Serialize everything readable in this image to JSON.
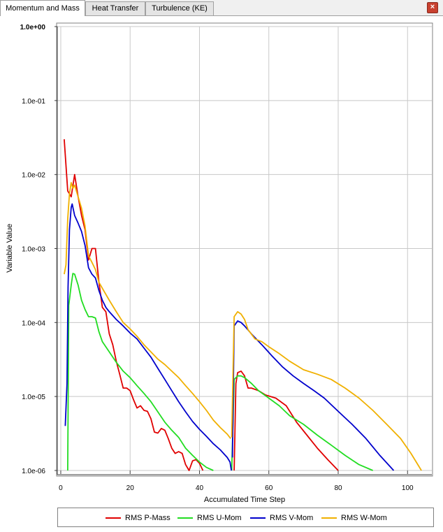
{
  "tabs": [
    {
      "label": "Momentum and Mass"
    },
    {
      "label": "Heat Transfer"
    },
    {
      "label": "Turbulence (KE)"
    }
  ],
  "close_icon": "close-icon",
  "chart_data": {
    "type": "line",
    "title": "",
    "xlabel": "Accumulated Time Step",
    "ylabel": "Variable Value",
    "xlim": [
      -1,
      107
    ],
    "ylim_log10": [
      -6,
      0
    ],
    "yscale": "log",
    "x_ticks": [
      0,
      20,
      40,
      60,
      80,
      100
    ],
    "y_tick_labels": [
      "1.0e+00",
      "1.0e-01",
      "1.0e-02",
      "1.0e-03",
      "1.0e-04",
      "1.0e-05",
      "1.0e-06"
    ],
    "grid": true,
    "legend_position": "bottom",
    "series": [
      {
        "name": "RMS P-Mass",
        "color": "#e00000",
        "segments": [
          [
            [
              1,
              0.03
            ],
            [
              2,
              0.006
            ],
            [
              3,
              0.005
            ],
            [
              4,
              0.01
            ],
            [
              5,
              0.005
            ],
            [
              6,
              0.0028
            ],
            [
              7,
              0.0018
            ],
            [
              8,
              0.0007
            ],
            [
              9,
              0.001
            ],
            [
              10,
              0.001
            ],
            [
              11,
              0.00035
            ],
            [
              12,
              0.00016
            ],
            [
              13,
              0.00014
            ],
            [
              14,
              7e-05
            ],
            [
              15,
              5e-05
            ],
            [
              16,
              3e-05
            ],
            [
              17,
              2e-05
            ],
            [
              18,
              1.3e-05
            ],
            [
              19,
              1.3e-05
            ],
            [
              20,
              1.2e-05
            ],
            [
              21,
              9e-06
            ],
            [
              22,
              7e-06
            ],
            [
              23,
              7.5e-06
            ],
            [
              24,
              6.5e-06
            ],
            [
              25,
              6.3e-06
            ],
            [
              26,
              5e-06
            ],
            [
              27,
              3.3e-06
            ],
            [
              28,
              3.2e-06
            ],
            [
              29,
              3.7e-06
            ],
            [
              30,
              3.5e-06
            ],
            [
              31,
              2.7e-06
            ],
            [
              32,
              2e-06
            ],
            [
              33,
              1.7e-06
            ],
            [
              34,
              1.8e-06
            ],
            [
              35,
              1.7e-06
            ],
            [
              36,
              1.2e-06
            ],
            [
              37,
              1e-06
            ],
            [
              38,
              1.35e-06
            ],
            [
              39,
              1.4e-06
            ],
            [
              40,
              1.25e-06
            ],
            [
              41,
              1e-06
            ]
          ],
          [
            [
              50,
              1e-06
            ],
            [
              50.5,
              1.5e-05
            ],
            [
              51,
              2.1e-05
            ],
            [
              52,
              2.2e-05
            ],
            [
              53,
              1.9e-05
            ],
            [
              54,
              1.3e-05
            ],
            [
              55,
              1.3e-05
            ],
            [
              57,
              1.2e-05
            ],
            [
              59,
              1.05e-05
            ],
            [
              62,
              9.5e-06
            ],
            [
              65,
              7.5e-06
            ],
            [
              68,
              4.5e-06
            ],
            [
              71,
              3e-06
            ],
            [
              74,
              2e-06
            ],
            [
              77,
              1.4e-06
            ],
            [
              80,
              1e-06
            ]
          ]
        ]
      },
      {
        "name": "RMS U-Mom",
        "color": "#22dd22",
        "segments": [
          [
            [
              2,
              1e-06
            ],
            [
              2.3,
              0.00017
            ],
            [
              3,
              0.00032
            ],
            [
              3.5,
              0.00046
            ],
            [
              4,
              0.00045
            ],
            [
              5,
              0.00032
            ],
            [
              6,
              0.0002
            ],
            [
              7,
              0.00015
            ],
            [
              8,
              0.00012
            ],
            [
              9,
              0.00012
            ],
            [
              10,
              0.000115
            ],
            [
              11,
              7.5e-05
            ],
            [
              12,
              5.5e-05
            ],
            [
              14,
              4e-05
            ],
            [
              16,
              2.9e-05
            ],
            [
              18,
              2.2e-05
            ],
            [
              20,
              1.8e-05
            ],
            [
              22,
              1.4e-05
            ],
            [
              24,
              1.1e-05
            ],
            [
              26,
              8.5e-06
            ],
            [
              28,
              6.2e-06
            ],
            [
              30,
              4.5e-06
            ],
            [
              32,
              3.5e-06
            ],
            [
              34,
              2.8e-06
            ],
            [
              36,
              2e-06
            ],
            [
              38,
              1.6e-06
            ],
            [
              40,
              1.3e-06
            ],
            [
              42,
              1.1e-06
            ],
            [
              44,
              1e-06
            ]
          ],
          [
            [
              49.3,
              1e-06
            ],
            [
              50,
              1.7e-05
            ],
            [
              51,
              1.9e-05
            ],
            [
              52,
              1.9e-05
            ],
            [
              53,
              1.8e-05
            ],
            [
              55,
              1.5e-05
            ],
            [
              57,
              1.2e-05
            ],
            [
              60,
              9.5e-06
            ],
            [
              63,
              7.5e-06
            ],
            [
              66,
              5.5e-06
            ],
            [
              70,
              4.2e-06
            ],
            [
              74,
              3e-06
            ],
            [
              78,
              2.2e-06
            ],
            [
              82,
              1.6e-06
            ],
            [
              86,
              1.2e-06
            ],
            [
              90,
              1e-06
            ]
          ]
        ]
      },
      {
        "name": "RMS V-Mom",
        "color": "#0000cc",
        "segments": [
          [
            [
              1.3,
              4e-06
            ],
            [
              1.8,
              1.5e-05
            ],
            [
              2.1,
              0.0003
            ],
            [
              2.5,
              0.0018
            ],
            [
              3,
              0.0036
            ],
            [
              3.3,
              0.004
            ],
            [
              4,
              0.0028
            ],
            [
              5,
              0.0022
            ],
            [
              6,
              0.0017
            ],
            [
              7,
              0.0011
            ],
            [
              8,
              0.00055
            ],
            [
              9,
              0.00045
            ],
            [
              10,
              0.0004
            ],
            [
              11,
              0.00027
            ],
            [
              12,
              0.0002
            ],
            [
              13,
              0.00016
            ],
            [
              14,
              0.00014
            ],
            [
              16,
              0.00011
            ],
            [
              18,
              9e-05
            ],
            [
              20,
              7.2e-05
            ],
            [
              22,
              6e-05
            ],
            [
              24,
              4.5e-05
            ],
            [
              26,
              3.4e-05
            ],
            [
              28,
              2.4e-05
            ],
            [
              30,
              1.7e-05
            ],
            [
              32,
              1.2e-05
            ],
            [
              34,
              8.5e-06
            ],
            [
              36,
              6.2e-06
            ],
            [
              38,
              4.6e-06
            ],
            [
              40,
              3.6e-06
            ],
            [
              42,
              2.9e-06
            ],
            [
              44,
              2.3e-06
            ],
            [
              46,
              1.9e-06
            ],
            [
              48,
              1.5e-06
            ],
            [
              48.8,
              1.3e-06
            ],
            [
              49.2,
              1e-06
            ]
          ],
          [
            [
              49.5,
              1.5e-06
            ],
            [
              50,
              9e-05
            ],
            [
              51,
              0.000105
            ],
            [
              52,
              0.0001
            ],
            [
              53,
              9e-05
            ],
            [
              55,
              7e-05
            ],
            [
              58,
              5e-05
            ],
            [
              61,
              3.5e-05
            ],
            [
              64,
              2.5e-05
            ],
            [
              67,
              1.9e-05
            ],
            [
              70,
              1.5e-05
            ],
            [
              73,
              1.2e-05
            ],
            [
              76,
              9.5e-06
            ],
            [
              80,
              6.3e-06
            ],
            [
              84,
              4.2e-06
            ],
            [
              88,
              2.7e-06
            ],
            [
              92,
              1.6e-06
            ],
            [
              96,
              1e-06
            ]
          ]
        ]
      },
      {
        "name": "RMS W-Mom",
        "color": "#f0b000",
        "segments": [
          [
            [
              1,
              0.00045
            ],
            [
              1.5,
              0.0006
            ],
            [
              2,
              0.0025
            ],
            [
              2.5,
              0.0055
            ],
            [
              3,
              0.0078
            ],
            [
              3.5,
              0.0065
            ],
            [
              4,
              0.0072
            ],
            [
              5,
              0.005
            ],
            [
              6,
              0.0035
            ],
            [
              7,
              0.002
            ],
            [
              8,
              0.0008
            ],
            [
              9,
              0.00065
            ],
            [
              10,
              0.00052
            ],
            [
              11,
              0.00035
            ],
            [
              12,
              0.00029
            ],
            [
              14,
              0.0002
            ],
            [
              16,
              0.00014
            ],
            [
              18,
              0.0001
            ],
            [
              20,
              8.2e-05
            ],
            [
              22,
              6.5e-05
            ],
            [
              24,
              5e-05
            ],
            [
              26,
              4e-05
            ],
            [
              28,
              3.2e-05
            ],
            [
              30,
              2.7e-05
            ],
            [
              32,
              2.2e-05
            ],
            [
              34,
              1.8e-05
            ],
            [
              36,
              1.4e-05
            ],
            [
              38,
              1.1e-05
            ],
            [
              40,
              8.5e-06
            ],
            [
              42,
              6.5e-06
            ],
            [
              44,
              4.8e-06
            ],
            [
              46,
              3.8e-06
            ],
            [
              48,
              3.1e-06
            ],
            [
              49,
              2.7e-06
            ]
          ],
          [
            [
              49.3,
              2.8e-06
            ],
            [
              50,
              0.00012
            ],
            [
              51,
              0.00014
            ],
            [
              52,
              0.00013
            ],
            [
              53,
              0.00011
            ],
            [
              54,
              8e-05
            ],
            [
              56,
              6e-05
            ],
            [
              58,
              5.5e-05
            ],
            [
              60,
              4.7e-05
            ],
            [
              63,
              3.8e-05
            ],
            [
              66,
              3e-05
            ],
            [
              70,
              2.3e-05
            ],
            [
              74,
              2e-05
            ],
            [
              78,
              1.7e-05
            ],
            [
              82,
              1.3e-05
            ],
            [
              86,
              9.5e-06
            ],
            [
              90,
              6.5e-06
            ],
            [
              94,
              4.2e-06
            ],
            [
              98,
              2.7e-06
            ],
            [
              101,
              1.7e-06
            ],
            [
              104,
              1e-06
            ]
          ]
        ]
      }
    ]
  }
}
